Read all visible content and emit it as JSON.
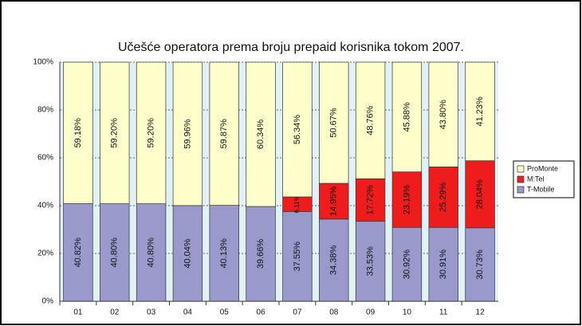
{
  "chart_data": {
    "type": "stacked_bar",
    "title": "Učešće operatora prema broju prepaid korisnika tokom 2007.",
    "categories": [
      "01",
      "02",
      "03",
      "04",
      "05",
      "06",
      "07",
      "08",
      "09",
      "10",
      "11",
      "12"
    ],
    "series": [
      {
        "name": "T-Mobile",
        "color": "#9999cc",
        "values": [
          40.82,
          40.8,
          40.8,
          40.04,
          40.13,
          39.66,
          37.55,
          34.38,
          33.53,
          30.92,
          30.91,
          30.73
        ],
        "value_labels": [
          "40.82%",
          "40.80%",
          "40.80%",
          "40.04%",
          "40.13%",
          "39.66%",
          "37.55%",
          "34.38%",
          "33.53%",
          "30.92%",
          "30.91%",
          "30.73%"
        ]
      },
      {
        "name": "M:Tel",
        "color": "#ee1c1c",
        "values": [
          null,
          null,
          null,
          null,
          null,
          null,
          6.11,
          14.95,
          17.72,
          23.19,
          25.29,
          28.04
        ],
        "value_labels": [
          null,
          null,
          null,
          null,
          null,
          null,
          "6.11%",
          "14.95%",
          "17.72%",
          "23.19%",
          "25.29%",
          "28.04%"
        ]
      },
      {
        "name": "ProMonte",
        "color": "#ffffcc",
        "values": [
          59.18,
          59.2,
          59.2,
          59.96,
          59.87,
          60.34,
          56.34,
          50.67,
          48.76,
          45.88,
          43.8,
          41.23
        ],
        "value_labels": [
          "59.18%",
          "59.20%",
          "59.20%",
          "59.96%",
          "59.87%",
          "60.34%",
          "56.34%",
          "50.67%",
          "48.76%",
          "45.88%",
          "43.80%",
          "41.23%"
        ]
      }
    ],
    "ylim": [
      0,
      100
    ],
    "yticks": [
      {
        "value": 0,
        "label": "0%"
      },
      {
        "value": 20,
        "label": "20%"
      },
      {
        "value": 40,
        "label": "40%"
      },
      {
        "value": 60,
        "label": "60%"
      },
      {
        "value": 80,
        "label": "80%"
      },
      {
        "value": 100,
        "label": "100%"
      }
    ],
    "grid": true,
    "legend": "right"
  }
}
